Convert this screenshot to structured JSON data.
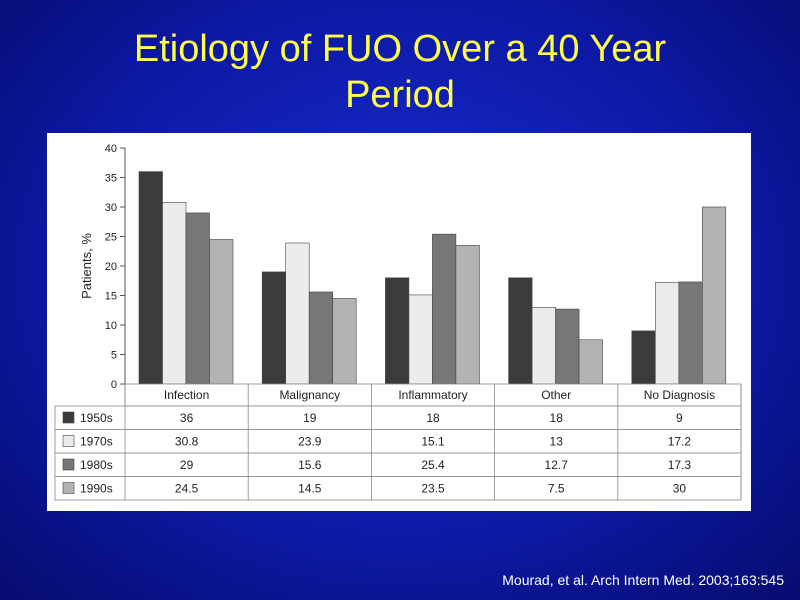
{
  "slide": {
    "title_line1": "Etiology of FUO Over a 40 Year",
    "title_line2": "Period",
    "citation": "Mourad, et al. Arch Intern Med. 2003;163:545"
  },
  "chart_data": {
    "type": "bar",
    "categories": [
      "Infection",
      "Malignancy",
      "Inflammatory",
      "Other",
      "No Diagnosis"
    ],
    "series": [
      {
        "name": "1950s",
        "values": [
          36,
          19,
          18,
          18,
          9
        ],
        "color": "#3b3b3b"
      },
      {
        "name": "1970s",
        "values": [
          30.8,
          23.9,
          15.1,
          13,
          17.2
        ],
        "color": "#ececec"
      },
      {
        "name": "1980s",
        "values": [
          29,
          15.6,
          25.4,
          12.7,
          17.3
        ],
        "color": "#777777"
      },
      {
        "name": "1990s",
        "values": [
          24.5,
          14.5,
          23.5,
          7.5,
          30
        ],
        "color": "#b3b3b3"
      }
    ],
    "ylabel": "Patients, %",
    "xlabel": "",
    "ylim": [
      0,
      40
    ],
    "yticks": [
      "0",
      "5",
      "10",
      "15",
      "20",
      "25",
      "30",
      "35",
      "40"
    ],
    "table": {
      "rows": [
        [
          "36",
          "19",
          "18",
          "18",
          "9"
        ],
        [
          "30.8",
          "23.9",
          "15.1",
          "13",
          "17.2"
        ],
        [
          "29",
          "15.6",
          "25.4",
          "12.7",
          "17.3"
        ],
        [
          "24.5",
          "14.5",
          "23.5",
          "7.5",
          "30"
        ]
      ]
    },
    "grid": false,
    "legend": "data table below chart"
  }
}
